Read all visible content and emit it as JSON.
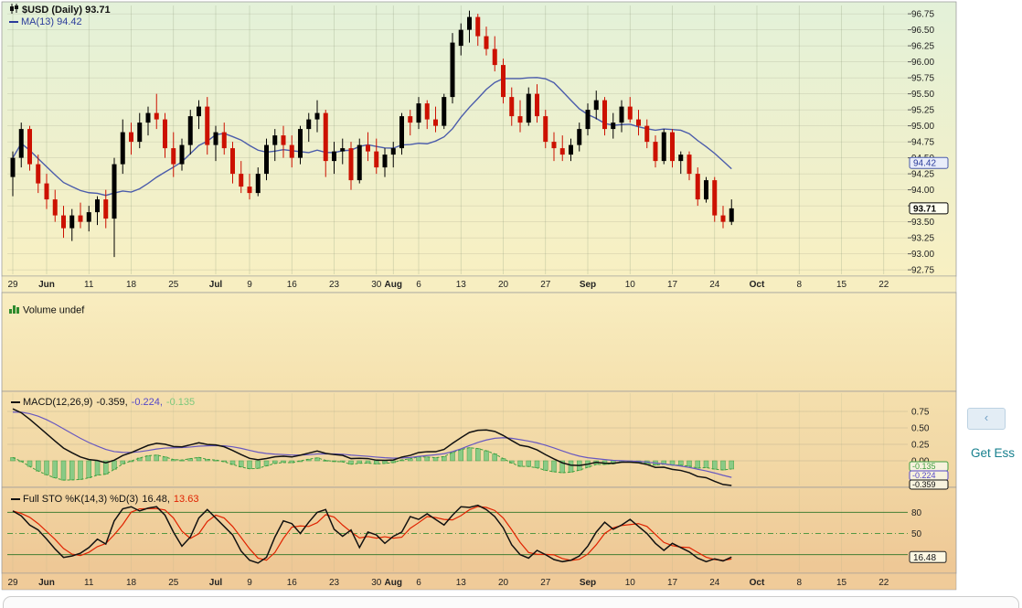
{
  "side": {
    "collapse_label": "‹",
    "get_link": "Get Ess"
  },
  "chart_data": {
    "type": "candlestick+indicators",
    "legend": {
      "symbol": "$USD (Daily) 93.71",
      "ma": "MA(13) 94.42",
      "volume": "Volume undef",
      "macd_name": "MACD(12,26,9)",
      "macd_v1": "-0.359,",
      "macd_v2": "-0.224,",
      "macd_v3": "-0.135",
      "sto_name": "Full STO %K(14,3) %D(3)",
      "sto_v1": "16.48,",
      "sto_v2": "13.63"
    },
    "price_axis": {
      "ticks": [
        "96.75",
        "96.50",
        "96.25",
        "96.00",
        "95.75",
        "95.50",
        "95.25",
        "95.00",
        "94.75",
        "94.50",
        "94.25",
        "94.00",
        "93.75",
        "93.50",
        "93.25",
        "93.00",
        "92.75"
      ],
      "ma_box": "94.42",
      "close_box": "93.71"
    },
    "macd_axis": {
      "ticks": [
        "0.75",
        "0.50",
        "0.25",
        "0.00"
      ],
      "boxes": [
        "-0.135",
        "-0.224",
        "-0.359"
      ]
    },
    "sto_axis": {
      "labels": [
        80,
        50
      ],
      "lines": [
        80,
        50,
        20
      ],
      "box": "16.48",
      "box_value": 16.48
    },
    "x_labels": [
      {
        "t": "29",
        "i": 0,
        "b": 0
      },
      {
        "t": "Jun",
        "i": 4,
        "b": 1
      },
      {
        "t": "11",
        "i": 9,
        "b": 0
      },
      {
        "t": "18",
        "i": 14,
        "b": 0
      },
      {
        "t": "25",
        "i": 19,
        "b": 0
      },
      {
        "t": "Jul",
        "i": 24,
        "b": 1
      },
      {
        "t": "9",
        "i": 28,
        "b": 0
      },
      {
        "t": "16",
        "i": 33,
        "b": 0
      },
      {
        "t": "23",
        "i": 38,
        "b": 0
      },
      {
        "t": "30",
        "i": 43,
        "b": 0
      },
      {
        "t": "Aug",
        "i": 45,
        "b": 1
      },
      {
        "t": "6",
        "i": 48,
        "b": 0
      },
      {
        "t": "13",
        "i": 53,
        "b": 0
      },
      {
        "t": "20",
        "i": 58,
        "b": 0
      },
      {
        "t": "27",
        "i": 63,
        "b": 0
      },
      {
        "t": "Sep",
        "i": 68,
        "b": 1
      },
      {
        "t": "10",
        "i": 73,
        "b": 0
      },
      {
        "t": "17",
        "i": 78,
        "b": 0
      },
      {
        "t": "24",
        "i": 83,
        "b": 0
      },
      {
        "t": "Oct",
        "i": 88,
        "b": 1
      },
      {
        "t": "8",
        "i": 93,
        "b": 0
      },
      {
        "t": "15",
        "i": 98,
        "b": 0
      },
      {
        "t": "22",
        "i": 103,
        "b": 0
      }
    ],
    "candles": [
      [
        94.2,
        94.6,
        93.9,
        94.5
      ],
      [
        94.5,
        95.05,
        94.35,
        94.95
      ],
      [
        94.95,
        95.0,
        94.3,
        94.4
      ],
      [
        94.4,
        94.55,
        93.95,
        94.1
      ],
      [
        94.1,
        94.25,
        93.7,
        93.85
      ],
      [
        93.85,
        94.0,
        93.5,
        93.6
      ],
      [
        93.6,
        93.75,
        93.25,
        93.4
      ],
      [
        93.4,
        93.7,
        93.2,
        93.6
      ],
      [
        93.6,
        93.8,
        93.4,
        93.5
      ],
      [
        93.5,
        93.75,
        93.35,
        93.65
      ],
      [
        93.65,
        93.9,
        93.45,
        93.85
      ],
      [
        93.85,
        94.0,
        93.4,
        93.55
      ],
      [
        93.55,
        94.5,
        92.95,
        94.4
      ],
      [
        94.4,
        95.1,
        94.25,
        94.9
      ],
      [
        94.9,
        95.05,
        94.55,
        94.75
      ],
      [
        94.75,
        95.2,
        94.65,
        95.05
      ],
      [
        95.05,
        95.3,
        94.85,
        95.2
      ],
      [
        95.2,
        95.5,
        94.95,
        95.1
      ],
      [
        95.1,
        95.2,
        94.5,
        94.65
      ],
      [
        94.65,
        94.9,
        94.2,
        94.4
      ],
      [
        94.4,
        94.8,
        94.3,
        94.7
      ],
      [
        94.7,
        95.25,
        94.55,
        95.15
      ],
      [
        95.15,
        95.4,
        94.95,
        95.3
      ],
      [
        95.3,
        95.45,
        94.55,
        94.7
      ],
      [
        94.7,
        95.0,
        94.45,
        94.9
      ],
      [
        94.9,
        95.05,
        94.55,
        94.65
      ],
      [
        94.65,
        94.75,
        94.1,
        94.25
      ],
      [
        94.25,
        94.45,
        93.95,
        94.05
      ],
      [
        94.05,
        94.25,
        93.85,
        93.95
      ],
      [
        93.95,
        94.35,
        93.9,
        94.25
      ],
      [
        94.25,
        94.8,
        94.15,
        94.7
      ],
      [
        94.7,
        94.95,
        94.45,
        94.85
      ],
      [
        94.85,
        95.0,
        94.5,
        94.7
      ],
      [
        94.7,
        94.85,
        94.35,
        94.5
      ],
      [
        94.5,
        95.0,
        94.4,
        94.95
      ],
      [
        94.95,
        95.2,
        94.75,
        95.1
      ],
      [
        95.1,
        95.4,
        94.9,
        95.2
      ],
      [
        95.2,
        95.25,
        94.2,
        94.45
      ],
      [
        94.45,
        94.75,
        94.25,
        94.6
      ],
      [
        94.6,
        94.8,
        94.4,
        94.65
      ],
      [
        94.65,
        94.75,
        94.0,
        94.15
      ],
      [
        94.15,
        94.8,
        94.1,
        94.7
      ],
      [
        94.7,
        94.9,
        94.45,
        94.6
      ],
      [
        94.6,
        94.8,
        94.25,
        94.35
      ],
      [
        94.35,
        94.65,
        94.2,
        94.55
      ],
      [
        94.55,
        94.75,
        94.35,
        94.65
      ],
      [
        94.65,
        95.2,
        94.55,
        95.15
      ],
      [
        95.15,
        95.25,
        94.85,
        95.05
      ],
      [
        95.05,
        95.45,
        94.95,
        95.35
      ],
      [
        95.35,
        95.4,
        94.95,
        95.1
      ],
      [
        95.1,
        95.3,
        94.9,
        95.0
      ],
      [
        95.0,
        95.5,
        94.95,
        95.45
      ],
      [
        95.45,
        96.45,
        95.35,
        96.3
      ],
      [
        96.25,
        96.6,
        96.1,
        96.5
      ],
      [
        96.5,
        96.8,
        96.3,
        96.7
      ],
      [
        96.7,
        96.75,
        96.25,
        96.4
      ],
      [
        96.4,
        96.55,
        96.1,
        96.2
      ],
      [
        96.2,
        96.4,
        95.85,
        95.95
      ],
      [
        95.95,
        96.05,
        95.35,
        95.45
      ],
      [
        95.45,
        95.6,
        95.0,
        95.15
      ],
      [
        95.15,
        95.4,
        94.9,
        95.05
      ],
      [
        95.05,
        95.6,
        95.0,
        95.5
      ],
      [
        95.5,
        95.65,
        95.05,
        95.15
      ],
      [
        95.15,
        95.25,
        94.65,
        94.75
      ],
      [
        94.75,
        94.9,
        94.45,
        94.65
      ],
      [
        94.65,
        94.85,
        94.45,
        94.55
      ],
      [
        94.55,
        94.8,
        94.45,
        94.7
      ],
      [
        94.7,
        95.05,
        94.6,
        94.95
      ],
      [
        94.95,
        95.35,
        94.85,
        95.25
      ],
      [
        95.25,
        95.55,
        95.1,
        95.4
      ],
      [
        95.4,
        95.45,
        94.85,
        94.95
      ],
      [
        94.95,
        95.2,
        94.8,
        95.05
      ],
      [
        95.05,
        95.4,
        94.9,
        95.3
      ],
      [
        95.3,
        95.45,
        95.05,
        95.1
      ],
      [
        95.1,
        95.25,
        94.85,
        95.0
      ],
      [
        95.0,
        95.1,
        94.65,
        94.75
      ],
      [
        94.75,
        94.85,
        94.35,
        94.45
      ],
      [
        94.45,
        94.95,
        94.4,
        94.9
      ],
      [
        94.9,
        94.95,
        94.35,
        94.45
      ],
      [
        94.45,
        94.6,
        94.25,
        94.55
      ],
      [
        94.55,
        94.6,
        94.15,
        94.25
      ],
      [
        94.25,
        94.35,
        93.75,
        93.85
      ],
      [
        93.85,
        94.2,
        93.8,
        94.15
      ],
      [
        94.15,
        94.2,
        93.5,
        93.6
      ],
      [
        93.6,
        93.75,
        93.4,
        93.5
      ],
      [
        93.5,
        93.85,
        93.45,
        93.71
      ]
    ],
    "sto_k": [
      82,
      75,
      62,
      55,
      42,
      28,
      16,
      18,
      22,
      30,
      42,
      35,
      68,
      85,
      88,
      82,
      86,
      88,
      76,
      52,
      32,
      45,
      72,
      84,
      72,
      60,
      48,
      25,
      12,
      8,
      16,
      45,
      68,
      64,
      50,
      66,
      80,
      84,
      56,
      46,
      55,
      30,
      52,
      48,
      36,
      46,
      52,
      74,
      70,
      78,
      70,
      62,
      76,
      88,
      87,
      90,
      84,
      74,
      58,
      34,
      20,
      15,
      26,
      20,
      13,
      10,
      12,
      18,
      32,
      52,
      66,
      56,
      62,
      70,
      60,
      50,
      36,
      26,
      36,
      30,
      24,
      15,
      10,
      14,
      11,
      16.48
    ],
    "colors": {
      "up": "#000000",
      "down": "#cc1100",
      "ma": "#4b5cab",
      "macd": "#111111",
      "signal": "#6858c0",
      "hist_fill": "#85ca85",
      "hist_stroke": "#3f9f3f",
      "k": "#111111",
      "d": "#e02200",
      "grid_green_dark": "#1a6b1a",
      "grid_green_mid": "#2e8b2e"
    }
  }
}
